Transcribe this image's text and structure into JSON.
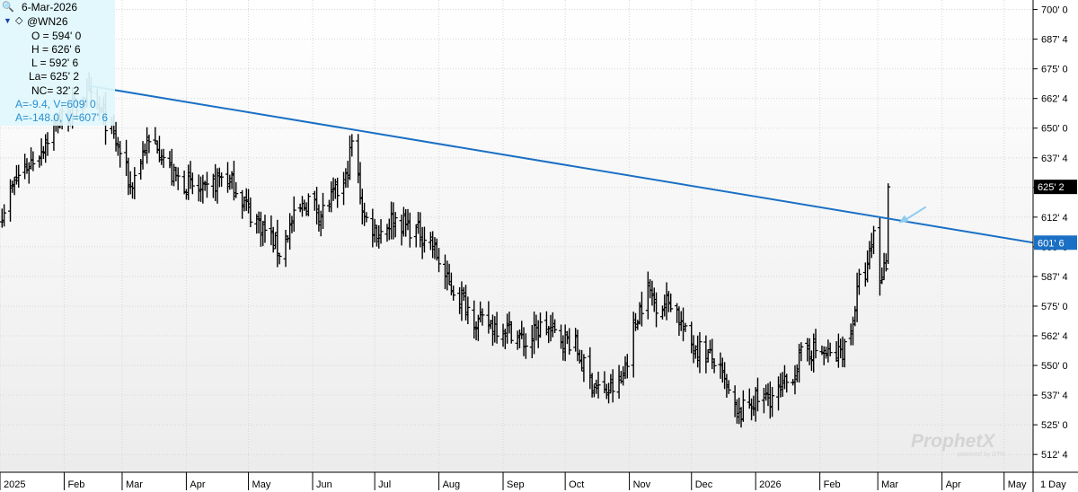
{
  "info_panel": {
    "date": "6-Mar-2026",
    "symbol": "@WN26",
    "open": "O = 594' 0",
    "high": "H = 626' 6",
    "low": "L = 592' 6",
    "last": "La= 625' 2",
    "net_change": "NC= 32' 2",
    "line_a": "A=-9.4, V=609' 0",
    "line_b": "A=-148.0, V=607' 6"
  },
  "watermark": {
    "brand": "ProphetX",
    "sub": "powered by DTN"
  },
  "chart_data": {
    "type": "ohlc-bar",
    "symbol": "@WN26",
    "price_axis": {
      "ticks": [
        "700' 0",
        "687' 4",
        "675' 0",
        "662' 4",
        "650' 0",
        "637' 4",
        "625' 0",
        "612' 4",
        "600' 0",
        "587' 4",
        "575' 0",
        "562' 4",
        "550' 0",
        "537' 4",
        "525' 0",
        "512' 4"
      ],
      "tick_values": [
        700,
        687.5,
        675,
        662.5,
        650,
        637.5,
        625,
        612.5,
        600,
        587.5,
        575,
        562.5,
        550,
        537.5,
        525,
        512.5
      ],
      "range": [
        505,
        704
      ],
      "last_price_label": "625' 2",
      "last_price": 625.25,
      "trendline_price_label": "601' 6",
      "trendline_price": 601.75
    },
    "time_axis": {
      "labels": [
        "2025",
        "Feb",
        "Mar",
        "Apr",
        "May",
        "Jun",
        "Jul",
        "Aug",
        "Sep",
        "Oct",
        "Nov",
        "Dec",
        "2026",
        "Feb",
        "Mar",
        "Apr",
        "May"
      ],
      "period_label": "1 Day",
      "start": "2025-01-01",
      "end": "2026-05-15"
    },
    "trendline": {
      "start_date": "2025-02-12",
      "start_price": 668,
      "end_date": "2026-05-15",
      "end_price": 601.75,
      "color": "#1a70c4"
    },
    "arrow_color": "#8ecbee",
    "bar_color": "#000000",
    "anchors": [
      [
        "2025-01-02",
        615
      ],
      [
        "2025-01-10",
        630
      ],
      [
        "2025-01-20",
        640
      ],
      [
        "2025-01-28",
        652
      ],
      [
        "2025-02-05",
        658
      ],
      [
        "2025-02-12",
        664
      ],
      [
        "2025-02-20",
        655
      ],
      [
        "2025-02-28",
        640
      ],
      [
        "2025-03-05",
        625
      ],
      [
        "2025-03-12",
        642
      ],
      [
        "2025-03-18",
        644
      ],
      [
        "2025-03-25",
        630
      ],
      [
        "2025-04-02",
        626
      ],
      [
        "2025-04-10",
        622
      ],
      [
        "2025-04-18",
        630
      ],
      [
        "2025-04-25",
        625
      ],
      [
        "2025-05-02",
        614
      ],
      [
        "2025-05-10",
        606
      ],
      [
        "2025-05-16",
        598
      ],
      [
        "2025-05-22",
        610
      ],
      [
        "2025-05-30",
        620
      ],
      [
        "2025-06-05",
        614
      ],
      [
        "2025-06-12",
        622
      ],
      [
        "2025-06-17",
        628
      ],
      [
        "2025-06-20",
        644
      ],
      [
        "2025-06-26",
        612
      ],
      [
        "2025-07-03",
        606
      ],
      [
        "2025-07-10",
        612
      ],
      [
        "2025-07-18",
        608
      ],
      [
        "2025-07-28",
        603
      ],
      [
        "2025-08-05",
        585
      ],
      [
        "2025-08-12",
        578
      ],
      [
        "2025-08-20",
        568
      ],
      [
        "2025-08-28",
        567
      ],
      [
        "2025-09-05",
        565
      ],
      [
        "2025-09-12",
        559
      ],
      [
        "2025-09-20",
        567
      ],
      [
        "2025-09-28",
        562
      ],
      [
        "2025-10-05",
        560
      ],
      [
        "2025-10-12",
        545
      ],
      [
        "2025-10-20",
        538
      ],
      [
        "2025-10-28",
        543
      ],
      [
        "2025-11-05",
        572
      ],
      [
        "2025-11-10",
        582
      ],
      [
        "2025-11-15",
        575
      ],
      [
        "2025-11-22",
        578
      ],
      [
        "2025-11-29",
        560
      ],
      [
        "2025-12-05",
        557
      ],
      [
        "2025-12-12",
        552
      ],
      [
        "2025-12-18",
        540
      ],
      [
        "2025-12-23",
        528
      ],
      [
        "2025-12-30",
        535
      ],
      [
        "2026-01-05",
        536
      ],
      [
        "2026-01-12",
        538
      ],
      [
        "2026-01-18",
        545
      ],
      [
        "2026-01-25",
        557
      ],
      [
        "2026-02-01",
        556
      ],
      [
        "2026-02-08",
        553
      ],
      [
        "2026-02-15",
        560
      ],
      [
        "2026-02-20",
        585
      ],
      [
        "2026-02-24",
        590
      ],
      [
        "2026-02-27",
        606
      ],
      [
        "2026-03-02",
        586
      ],
      [
        "2026-03-05",
        594
      ],
      [
        "2026-03-06",
        625.25
      ]
    ]
  }
}
